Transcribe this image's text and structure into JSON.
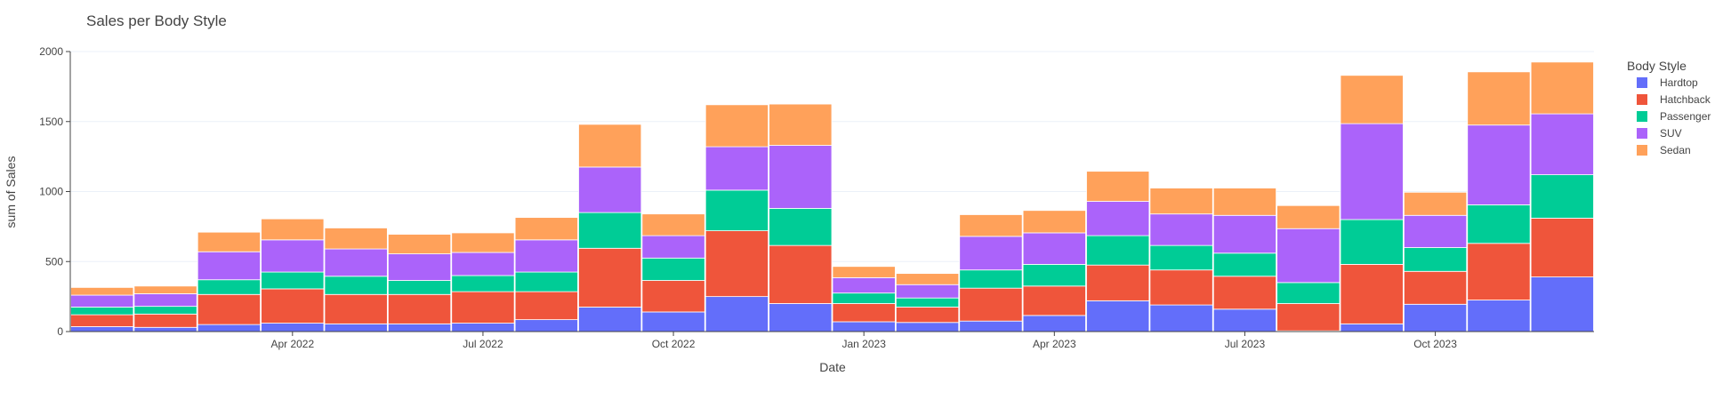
{
  "chart_data": {
    "type": "bar",
    "barmode": "stack",
    "title": "Sales per Body Style",
    "xlabel": "Date",
    "ylabel": "sum of Sales",
    "ylim": [
      0,
      2000
    ],
    "yticks": [
      0,
      500,
      1000,
      1500,
      2000
    ],
    "xticks": [
      {
        "label": "Apr 2022",
        "month": 3
      },
      {
        "label": "Jul 2022",
        "month": 6
      },
      {
        "label": "Oct 2022",
        "month": 9
      },
      {
        "label": "Jan 2023",
        "month": 12
      },
      {
        "label": "Apr 2023",
        "month": 15
      },
      {
        "label": "Jul 2023",
        "month": 18
      },
      {
        "label": "Oct 2023",
        "month": 21
      }
    ],
    "categories": [
      "2022-01",
      "2022-02",
      "2022-03",
      "2022-04",
      "2022-05",
      "2022-06",
      "2022-07",
      "2022-08",
      "2022-09",
      "2022-10",
      "2022-11",
      "2022-12",
      "2023-01",
      "2023-02",
      "2023-03",
      "2023-04",
      "2023-05",
      "2023-06",
      "2023-07",
      "2023-08",
      "2023-09",
      "2023-10",
      "2023-11",
      "2023-12"
    ],
    "legend_title": "Body Style",
    "legend_position": "right",
    "series": [
      {
        "name": "Hardtop",
        "color": "#636efa",
        "values": [
          35,
          30,
          50,
          60,
          55,
          55,
          60,
          85,
          175,
          140,
          250,
          200,
          70,
          65,
          75,
          115,
          220,
          190,
          160,
          5,
          55,
          195,
          225,
          390
        ]
      },
      {
        "name": "Hatchback",
        "color": "#ef553b",
        "values": [
          85,
          95,
          215,
          245,
          210,
          210,
          225,
          200,
          420,
          225,
          470,
          415,
          130,
          110,
          235,
          210,
          255,
          250,
          235,
          195,
          425,
          235,
          405,
          420
        ]
      },
      {
        "name": "Passenger",
        "color": "#00cc96",
        "values": [
          55,
          55,
          105,
          120,
          130,
          100,
          115,
          140,
          255,
          160,
          290,
          265,
          75,
          65,
          130,
          155,
          210,
          175,
          165,
          150,
          320,
          170,
          275,
          310
        ]
      },
      {
        "name": "SUV",
        "color": "#ab63fa",
        "values": [
          85,
          90,
          200,
          230,
          195,
          190,
          165,
          230,
          325,
          160,
          310,
          450,
          110,
          95,
          240,
          225,
          245,
          225,
          270,
          385,
          685,
          230,
          570,
          435
        ]
      },
      {
        "name": "Sedan",
        "color": "#ffa15a",
        "values": [
          55,
          55,
          140,
          150,
          150,
          140,
          140,
          160,
          305,
          155,
          300,
          295,
          80,
          80,
          155,
          160,
          215,
          185,
          195,
          165,
          345,
          165,
          380,
          370
        ]
      }
    ]
  }
}
